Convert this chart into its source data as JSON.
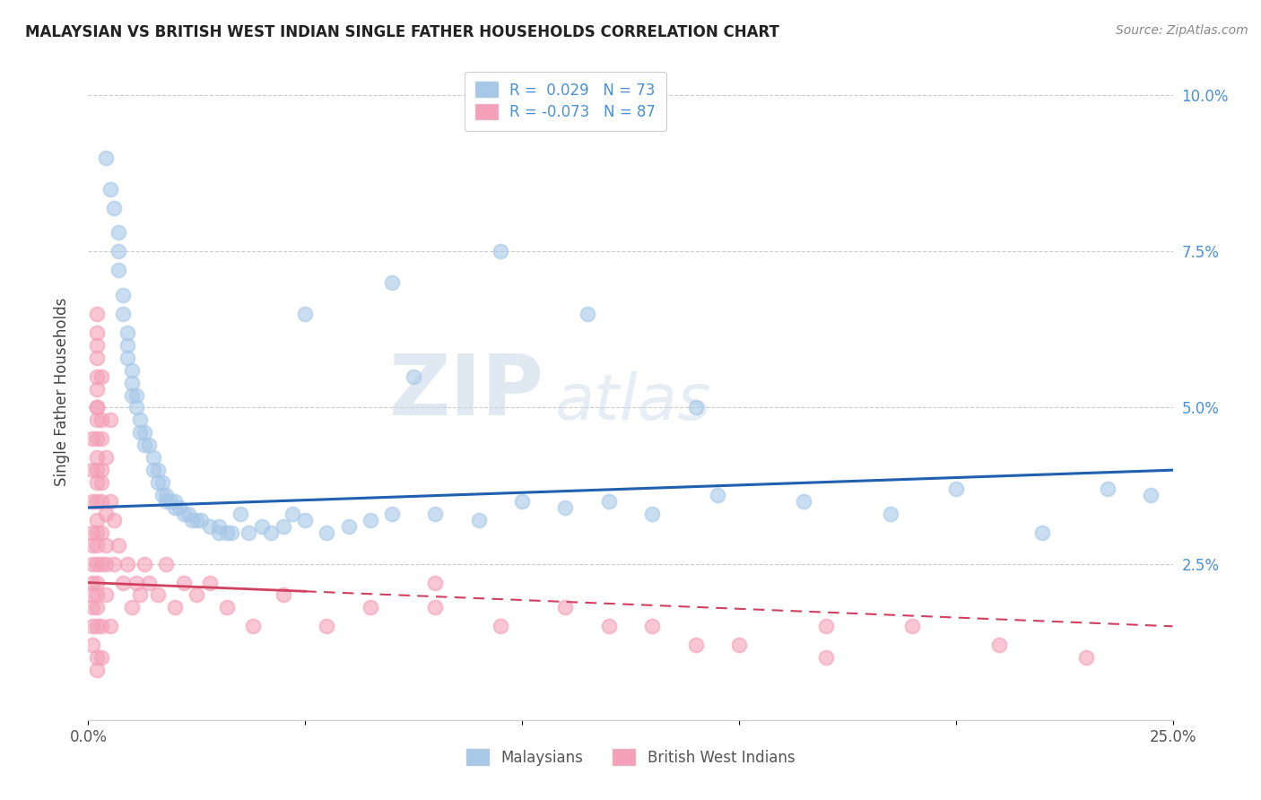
{
  "title": "MALAYSIAN VS BRITISH WEST INDIAN SINGLE FATHER HOUSEHOLDS CORRELATION CHART",
  "source": "Source: ZipAtlas.com",
  "ylabel": "Single Father Households",
  "xlim": [
    0.0,
    0.25
  ],
  "ylim": [
    0.0,
    0.105
  ],
  "xticks": [
    0.0,
    0.05,
    0.1,
    0.15,
    0.2,
    0.25
  ],
  "xtick_display": [
    "0.0%",
    "",
    "",
    "",
    "",
    "25.0%"
  ],
  "yticks": [
    0.0,
    0.025,
    0.05,
    0.075,
    0.1
  ],
  "ytick_display": [
    "",
    "2.5%",
    "5.0%",
    "7.5%",
    "10.0%"
  ],
  "legend_r_blue": "R =  0.029",
  "legend_n_blue": "N = 73",
  "legend_r_pink": "R = -0.073",
  "legend_n_pink": "N = 87",
  "color_blue": "#a8c8e8",
  "color_pink": "#f4a0b8",
  "line_color_blue": "#2060b0",
  "line_color_pink": "#d04060",
  "watermark_zip": "ZIP",
  "watermark_atlas": "atlas",
  "background_color": "#ffffff",
  "malaysian_x": [
    0.004,
    0.005,
    0.006,
    0.007,
    0.007,
    0.007,
    0.008,
    0.008,
    0.009,
    0.009,
    0.009,
    0.01,
    0.01,
    0.01,
    0.011,
    0.011,
    0.012,
    0.012,
    0.013,
    0.013,
    0.014,
    0.015,
    0.015,
    0.016,
    0.016,
    0.017,
    0.017,
    0.018,
    0.018,
    0.019,
    0.02,
    0.02,
    0.021,
    0.022,
    0.023,
    0.024,
    0.025,
    0.026,
    0.028,
    0.03,
    0.03,
    0.032,
    0.033,
    0.035,
    0.037,
    0.04,
    0.042,
    0.045,
    0.047,
    0.05,
    0.055,
    0.06,
    0.065,
    0.07,
    0.075,
    0.08,
    0.09,
    0.1,
    0.11,
    0.12,
    0.13,
    0.145,
    0.165,
    0.185,
    0.2,
    0.22,
    0.235,
    0.245,
    0.05,
    0.07,
    0.095,
    0.115,
    0.14
  ],
  "malaysian_y": [
    0.09,
    0.085,
    0.082,
    0.078,
    0.075,
    0.072,
    0.068,
    0.065,
    0.062,
    0.06,
    0.058,
    0.056,
    0.054,
    0.052,
    0.052,
    0.05,
    0.048,
    0.046,
    0.046,
    0.044,
    0.044,
    0.042,
    0.04,
    0.04,
    0.038,
    0.038,
    0.036,
    0.036,
    0.035,
    0.035,
    0.035,
    0.034,
    0.034,
    0.033,
    0.033,
    0.032,
    0.032,
    0.032,
    0.031,
    0.031,
    0.03,
    0.03,
    0.03,
    0.033,
    0.03,
    0.031,
    0.03,
    0.031,
    0.033,
    0.032,
    0.03,
    0.031,
    0.032,
    0.033,
    0.055,
    0.033,
    0.032,
    0.035,
    0.034,
    0.035,
    0.033,
    0.036,
    0.035,
    0.033,
    0.037,
    0.03,
    0.037,
    0.036,
    0.065,
    0.07,
    0.075,
    0.065,
    0.05
  ],
  "bwi_x": [
    0.001,
    0.001,
    0.001,
    0.001,
    0.001,
    0.001,
    0.001,
    0.001,
    0.001,
    0.001,
    0.001,
    0.002,
    0.002,
    0.002,
    0.002,
    0.002,
    0.002,
    0.002,
    0.002,
    0.002,
    0.002,
    0.002,
    0.002,
    0.002,
    0.002,
    0.002,
    0.002,
    0.002,
    0.002,
    0.002,
    0.002,
    0.002,
    0.002,
    0.002,
    0.002,
    0.003,
    0.003,
    0.003,
    0.003,
    0.003,
    0.003,
    0.003,
    0.003,
    0.003,
    0.003,
    0.004,
    0.004,
    0.004,
    0.004,
    0.004,
    0.005,
    0.005,
    0.005,
    0.006,
    0.006,
    0.007,
    0.008,
    0.009,
    0.01,
    0.011,
    0.012,
    0.013,
    0.014,
    0.016,
    0.018,
    0.02,
    0.022,
    0.025,
    0.028,
    0.032,
    0.038,
    0.045,
    0.055,
    0.065,
    0.08,
    0.095,
    0.11,
    0.13,
    0.15,
    0.17,
    0.19,
    0.21,
    0.23,
    0.08,
    0.12,
    0.14,
    0.17
  ],
  "bwi_y": [
    0.02,
    0.022,
    0.018,
    0.025,
    0.015,
    0.03,
    0.028,
    0.012,
    0.035,
    0.04,
    0.045,
    0.05,
    0.055,
    0.06,
    0.038,
    0.042,
    0.01,
    0.048,
    0.053,
    0.008,
    0.065,
    0.03,
    0.025,
    0.02,
    0.015,
    0.058,
    0.062,
    0.04,
    0.032,
    0.035,
    0.028,
    0.045,
    0.05,
    0.018,
    0.022,
    0.025,
    0.03,
    0.045,
    0.04,
    0.035,
    0.055,
    0.015,
    0.01,
    0.038,
    0.048,
    0.028,
    0.033,
    0.02,
    0.042,
    0.025,
    0.035,
    0.015,
    0.048,
    0.025,
    0.032,
    0.028,
    0.022,
    0.025,
    0.018,
    0.022,
    0.02,
    0.025,
    0.022,
    0.02,
    0.025,
    0.018,
    0.022,
    0.02,
    0.022,
    0.018,
    0.015,
    0.02,
    0.015,
    0.018,
    0.018,
    0.015,
    0.018,
    0.015,
    0.012,
    0.015,
    0.015,
    0.012,
    0.01,
    0.022,
    0.015,
    0.012,
    0.01
  ]
}
